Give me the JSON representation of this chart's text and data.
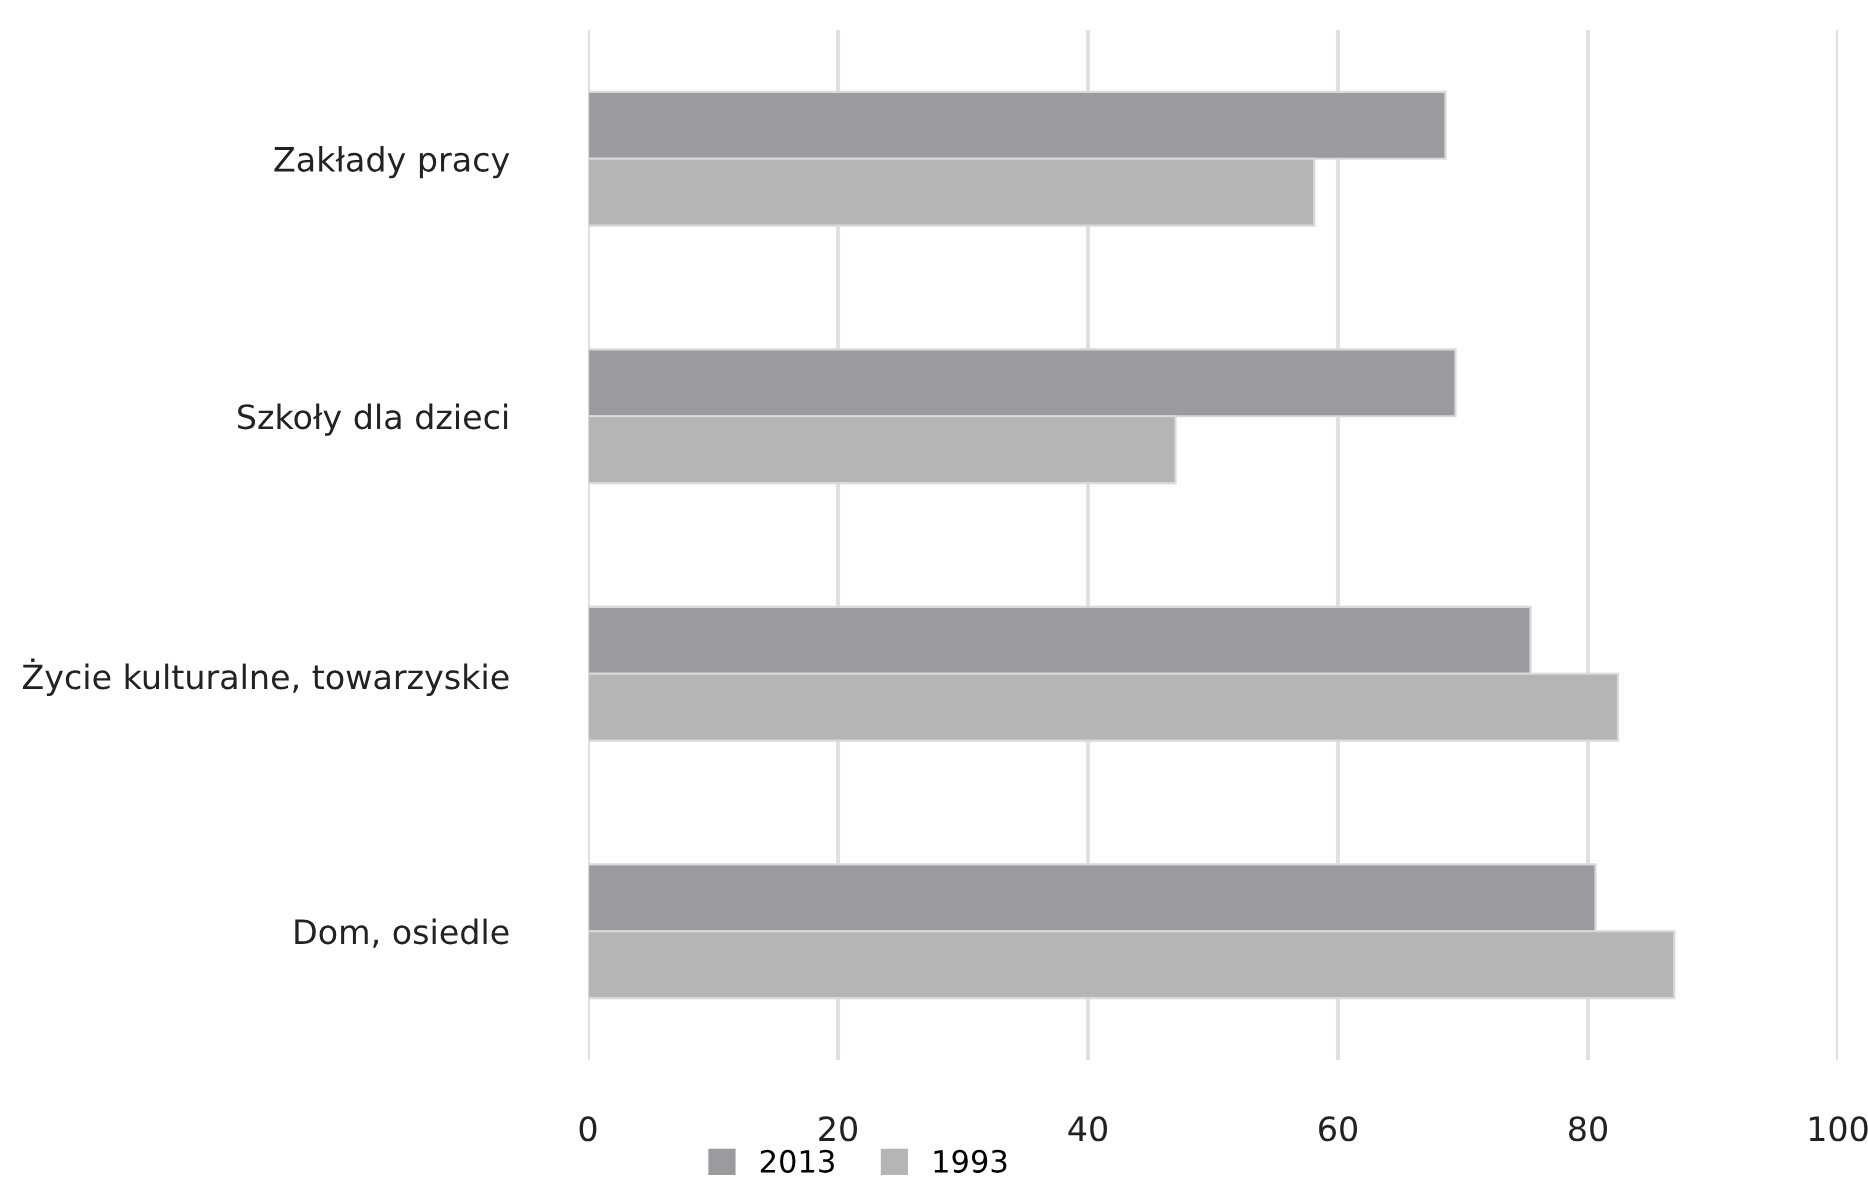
{
  "chart_data": {
    "type": "bar",
    "orientation": "horizontal",
    "categories": [
      "Zakłady pracy",
      "Szkoły dla dzieci",
      "Życie kulturalne, towarzyskie",
      "Dom, osiedle"
    ],
    "series": [
      {
        "name": "2013",
        "color": "#9a9b9f",
        "values": [
          68.6,
          69.4,
          75.4,
          80.6
        ]
      },
      {
        "name": "1993",
        "color": "#b4b5b7",
        "values": [
          58.1,
          47.0,
          82.4,
          86.9
        ]
      }
    ],
    "xlim": [
      0,
      100
    ],
    "xticks": [
      0,
      20,
      40,
      60,
      80,
      100
    ],
    "grid": "x",
    "legend": "bottom"
  }
}
